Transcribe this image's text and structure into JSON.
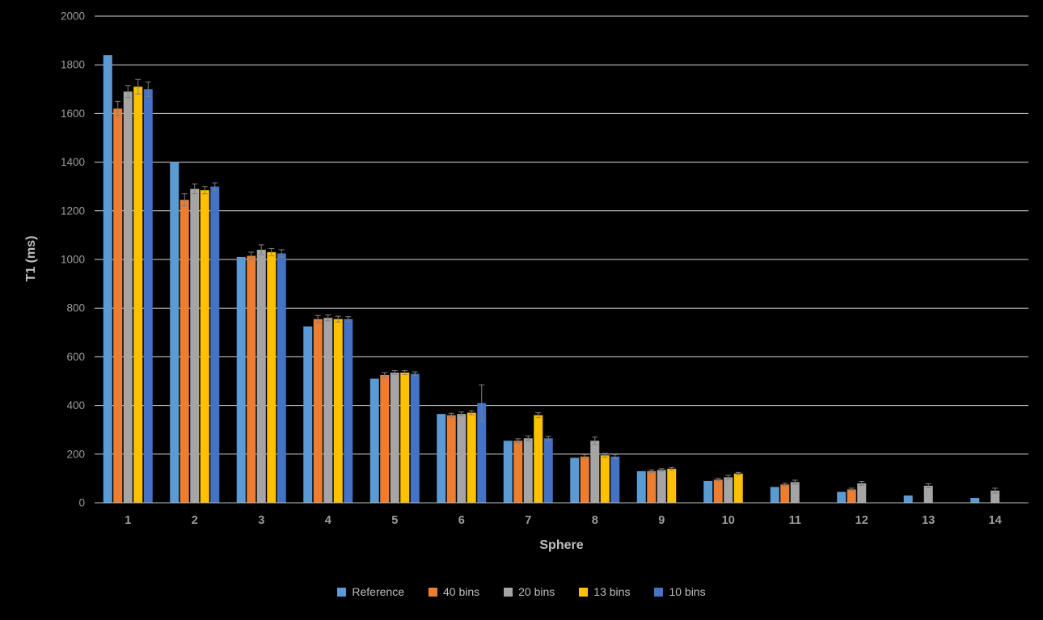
{
  "chart_data": {
    "type": "bar",
    "title": "",
    "xlabel": "Sphere",
    "ylabel": "T1 (ms)",
    "ylim": [
      0,
      2000
    ],
    "ytick_step": 200,
    "grid": true,
    "legend_position": "bottom",
    "background_color": "#000000",
    "gridline_color": "#D9D9D9",
    "axis_line_color": "#BFBFBF",
    "tick_label_color": "#9C9C9C",
    "axis_title_color": "#BFBFBF",
    "error_bar_color": "#808080",
    "categories": [
      "1",
      "2",
      "3",
      "4",
      "5",
      "6",
      "7",
      "8",
      "9",
      "10",
      "11",
      "12",
      "13",
      "14"
    ],
    "series": [
      {
        "name": "Reference",
        "color": "#5B9BD5",
        "values": [
          1840,
          1400,
          1010,
          725,
          510,
          365,
          255,
          185,
          130,
          90,
          65,
          45,
          30,
          20
        ],
        "errors": [
          0,
          0,
          0,
          0,
          0,
          0,
          0,
          0,
          0,
          0,
          0,
          0,
          0,
          0
        ]
      },
      {
        "name": "40 bins",
        "color": "#ED7D31",
        "values": [
          1620,
          1245,
          1015,
          755,
          525,
          360,
          255,
          190,
          130,
          95,
          75,
          55,
          0,
          0
        ],
        "errors": [
          30,
          25,
          15,
          15,
          10,
          8,
          8,
          8,
          5,
          5,
          5,
          5,
          0,
          0
        ]
      },
      {
        "name": "20 bins",
        "color": "#A5A5A5",
        "values": [
          1690,
          1290,
          1040,
          760,
          535,
          365,
          265,
          255,
          135,
          105,
          85,
          80,
          70,
          50
        ],
        "errors": [
          25,
          20,
          20,
          12,
          8,
          8,
          10,
          15,
          5,
          8,
          8,
          8,
          8,
          10
        ]
      },
      {
        "name": "13 bins",
        "color": "#FFC000",
        "values": [
          1710,
          1285,
          1030,
          755,
          535,
          370,
          360,
          195,
          140,
          120,
          0,
          0,
          0,
          0
        ],
        "errors": [
          30,
          15,
          15,
          12,
          8,
          8,
          10,
          8,
          5,
          5,
          0,
          0,
          0,
          0
        ]
      },
      {
        "name": "10 bins",
        "color": "#4472C4",
        "values": [
          1700,
          1300,
          1025,
          755,
          530,
          410,
          265,
          190,
          0,
          0,
          0,
          0,
          0,
          0
        ],
        "errors": [
          30,
          15,
          15,
          10,
          8,
          75,
          8,
          8,
          0,
          0,
          0,
          0,
          0,
          0
        ]
      }
    ]
  }
}
